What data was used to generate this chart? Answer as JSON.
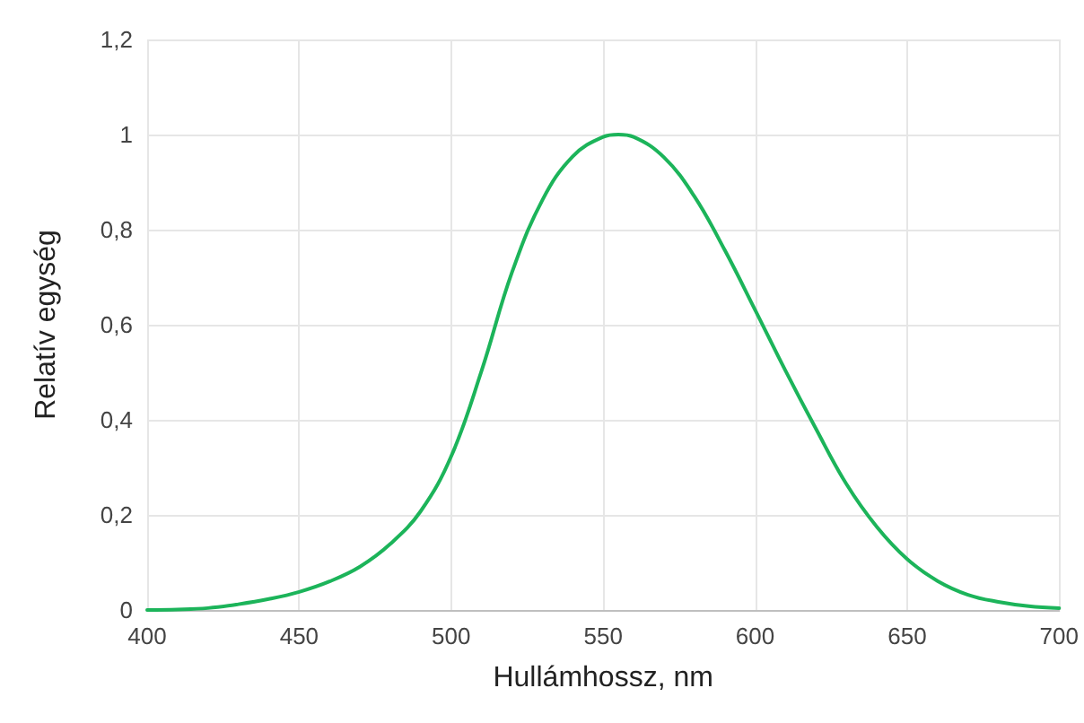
{
  "chart_data": {
    "type": "line",
    "xlabel": "Hullámhossz, nm",
    "ylabel": "Relatív egység",
    "series": [
      {
        "color": "#1cb45a",
        "x": [
          400,
          410,
          420,
          430,
          440,
          450,
          460,
          470,
          480,
          490,
          500,
          510,
          520,
          530,
          540,
          550,
          555,
          560,
          570,
          580,
          590,
          600,
          610,
          620,
          630,
          640,
          650,
          660,
          670,
          680,
          690,
          700
        ],
        "values": [
          0,
          0.001,
          0.004,
          0.012,
          0.023,
          0.038,
          0.06,
          0.091,
          0.139,
          0.208,
          0.323,
          0.503,
          0.71,
          0.862,
          0.954,
          0.995,
          1.0,
          0.995,
          0.952,
          0.87,
          0.757,
          0.631,
          0.503,
          0.381,
          0.265,
          0.175,
          0.107,
          0.061,
          0.032,
          0.017,
          0.008,
          0.004
        ]
      }
    ],
    "xlim": [
      400,
      700
    ],
    "xticks": [
      400,
      450,
      500,
      550,
      600,
      650,
      700
    ],
    "ylim": [
      0,
      1.2
    ],
    "yticks": [
      0,
      {
        "value": 0.2,
        "label": "0,2"
      },
      {
        "value": 0.4,
        "label": "0,4"
      },
      {
        "value": 0.6,
        "label": "0,6"
      },
      {
        "value": 0.8,
        "label": "0,8"
      },
      1,
      {
        "value": 1.2,
        "label": "1,2"
      }
    ],
    "grid": true,
    "marker": "none",
    "line_style": "solid"
  }
}
